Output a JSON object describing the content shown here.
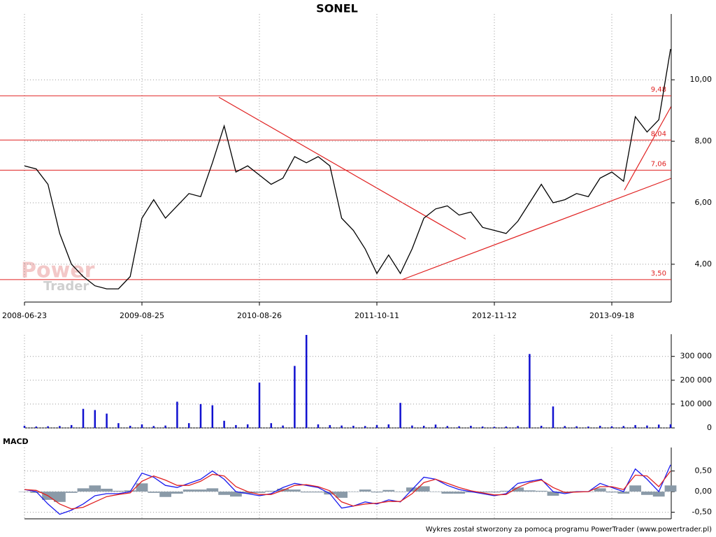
{
  "chart_data": [
    {
      "type": "line",
      "title": "SONEL",
      "categories": [
        "2008-06-23",
        null,
        null,
        null,
        null,
        null,
        null,
        null,
        null,
        null,
        "2009-08-25",
        null,
        null,
        null,
        null,
        null,
        null,
        null,
        null,
        null,
        "2010-08-26",
        null,
        null,
        null,
        null,
        null,
        null,
        null,
        null,
        null,
        "2011-10-11",
        null,
        null,
        null,
        null,
        null,
        null,
        null,
        null,
        null,
        "2012-11-12",
        null,
        null,
        null,
        null,
        null,
        null,
        null,
        null,
        null,
        "2013-09-18",
        null,
        null,
        null,
        null,
        null
      ],
      "series": [
        {
          "color": "#000000",
          "values": [
            7.2,
            7.1,
            6.6,
            5.0,
            4.0,
            3.6,
            3.3,
            3.2,
            3.2,
            3.6,
            5.5,
            6.1,
            5.5,
            5.9,
            6.3,
            6.2,
            7.3,
            8.5,
            7.0,
            7.2,
            6.9,
            6.6,
            6.8,
            7.5,
            7.3,
            7.5,
            7.2,
            5.5,
            5.1,
            4.5,
            3.7,
            4.3,
            3.7,
            4.5,
            5.5,
            5.8,
            5.9,
            5.6,
            5.7,
            5.2,
            5.1,
            5.0,
            5.4,
            6.0,
            6.6,
            6.0,
            6.1,
            6.3,
            6.2,
            6.8,
            7.0,
            6.7,
            8.8,
            8.3,
            8.7,
            11.0
          ]
        }
      ],
      "levels": {
        "color": "#e02020",
        "values": [
          9.48,
          8.04,
          7.06,
          3.5
        ],
        "value_labels": [
          "9,48",
          "8,04",
          "7,06",
          "3,50"
        ]
      },
      "ylim": [
        2.77,
        12.14
      ],
      "yticks": [
        {
          "value": 4,
          "label": "4,00"
        },
        {
          "value": 6,
          "label": "6,00"
        },
        {
          "value": 8,
          "label": "8,00"
        },
        {
          "value": 10,
          "label": "10,00"
        }
      ],
      "grid": true
    },
    {
      "type": "bar",
      "series": [
        {
          "color": "#1010d0",
          "values": [
            9000,
            6000,
            7000,
            8000,
            12000,
            80000,
            75000,
            60000,
            20000,
            9000,
            15000,
            8000,
            10000,
            110000,
            20000,
            100000,
            95000,
            30000,
            12000,
            15000,
            190000,
            20000,
            10000,
            260000,
            390000,
            15000,
            12000,
            10000,
            9000,
            8000,
            12000,
            15000,
            105000,
            10000,
            9000,
            14000,
            8000,
            7000,
            9000,
            6000,
            5000,
            6000,
            8000,
            310000,
            9000,
            90000,
            8000,
            7000,
            6000,
            9000,
            7000,
            8000,
            12000,
            10000,
            14000,
            15000
          ]
        }
      ],
      "ylim": [
        0,
        390000
      ],
      "yticks": [
        0,
        {
          "value": 100000,
          "label": "100 000"
        },
        {
          "value": 200000,
          "label": "200 000"
        },
        {
          "value": 300000,
          "label": "300 000"
        }
      ],
      "grid": true
    },
    {
      "type": "line",
      "title": "MACD",
      "series": [
        {
          "type": "bar",
          "color": "#8a9aa8",
          "values": [
            0,
            -0.03,
            -0.2,
            -0.25,
            -0.03,
            0.08,
            0.15,
            0.07,
            0.02,
            0.03,
            0.2,
            -0.03,
            -0.13,
            -0.05,
            0.05,
            0.05,
            0.08,
            -0.08,
            -0.12,
            -0.05,
            -0.03,
            0.02,
            0.07,
            0.05,
            -0.02,
            -0.02,
            -0.07,
            -0.15,
            0.0,
            0.05,
            -0.02,
            0.04,
            -0.01,
            0.1,
            0.13,
            0.0,
            -0.05,
            -0.05,
            -0.02,
            -0.02,
            -0.02,
            0.02,
            0.1,
            0.03,
            0.02,
            -0.1,
            -0.03,
            0.01,
            0.0,
            0.08,
            -0.02,
            -0.05,
            0.15,
            -0.08,
            -0.12,
            0.15
          ]
        },
        {
          "color": "#1a1aee",
          "values": [
            0.05,
            0.0,
            -0.3,
            -0.55,
            -0.45,
            -0.3,
            -0.1,
            -0.05,
            -0.05,
            0.0,
            0.45,
            0.35,
            0.15,
            0.1,
            0.2,
            0.3,
            0.5,
            0.3,
            0.0,
            -0.05,
            -0.1,
            -0.05,
            0.1,
            0.2,
            0.15,
            0.1,
            -0.05,
            -0.4,
            -0.35,
            -0.25,
            -0.3,
            -0.2,
            -0.25,
            0.05,
            0.35,
            0.3,
            0.15,
            0.05,
            0.0,
            -0.05,
            -0.1,
            -0.05,
            0.2,
            0.25,
            0.3,
            0.0,
            -0.05,
            0.0,
            0.0,
            0.2,
            0.1,
            0.0,
            0.55,
            0.3,
            0.0,
            0.65
          ]
        },
        {
          "color": "#e02020",
          "values": [
            0.05,
            0.03,
            -0.1,
            -0.3,
            -0.42,
            -0.38,
            -0.25,
            -0.12,
            -0.07,
            -0.03,
            0.25,
            0.38,
            0.28,
            0.15,
            0.15,
            0.25,
            0.42,
            0.38,
            0.12,
            0.0,
            -0.07,
            -0.07,
            0.03,
            0.15,
            0.17,
            0.12,
            0.02,
            -0.25,
            -0.35,
            -0.3,
            -0.28,
            -0.24,
            -0.24,
            -0.05,
            0.22,
            0.3,
            0.2,
            0.1,
            0.02,
            -0.03,
            -0.08,
            -0.07,
            0.1,
            0.22,
            0.28,
            0.1,
            -0.02,
            -0.01,
            0.0,
            0.12,
            0.12,
            0.05,
            0.4,
            0.38,
            0.12,
            0.5
          ]
        }
      ],
      "ylim": [
        -0.66,
        1.07
      ],
      "yticks": [
        {
          "value": -0.5,
          "label": "-0,50"
        },
        {
          "value": 0,
          "label": "0,00"
        },
        {
          "value": 0.5,
          "label": "0,50"
        }
      ],
      "grid": true
    }
  ],
  "watermark": [
    "Power",
    "Trader"
  ],
  "footer": "Wykres został stworzony za pomocą programu PowerTrader (www.powertrader.pl)"
}
